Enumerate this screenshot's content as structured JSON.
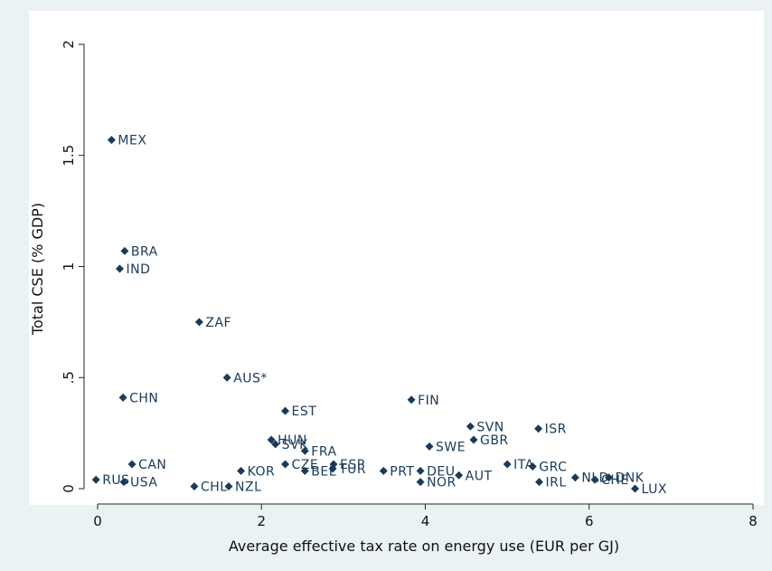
{
  "chart_data": {
    "type": "scatter",
    "title": "",
    "xlabel": "Average effective tax rate on energy use (EUR per GJ)",
    "ylabel": "Total CSE (% GDP)",
    "xlim": [
      0,
      8
    ],
    "ylim": [
      0,
      2
    ],
    "xticks": [
      {
        "v": 0,
        "label": "0"
      },
      {
        "v": 2,
        "label": "2"
      },
      {
        "v": 4,
        "label": "4"
      },
      {
        "v": 6,
        "label": "6"
      },
      {
        "v": 8,
        "label": "8"
      }
    ],
    "yticks": [
      {
        "v": 0,
        "label": "0"
      },
      {
        "v": 0.5,
        "label": ".5"
      },
      {
        "v": 1,
        "label": "1"
      },
      {
        "v": 1.5,
        "label": "1.5"
      },
      {
        "v": 2,
        "label": "2"
      }
    ],
    "grid": false,
    "marker_color": "#1a3a5a",
    "points": [
      {
        "label": "MEX",
        "x": 0.17,
        "y": 1.57
      },
      {
        "label": "BRA",
        "x": 0.33,
        "y": 1.07
      },
      {
        "label": "IND",
        "x": 0.27,
        "y": 0.99
      },
      {
        "label": "ZAF",
        "x": 1.24,
        "y": 0.75
      },
      {
        "label": "AUS*",
        "x": 1.58,
        "y": 0.5
      },
      {
        "label": "CHN",
        "x": 0.31,
        "y": 0.41
      },
      {
        "label": "EST",
        "x": 2.29,
        "y": 0.35
      },
      {
        "label": "FIN",
        "x": 3.83,
        "y": 0.4
      },
      {
        "label": "SVN",
        "x": 4.55,
        "y": 0.28
      },
      {
        "label": "ISR",
        "x": 5.38,
        "y": 0.27
      },
      {
        "label": "GBR",
        "x": 4.59,
        "y": 0.22
      },
      {
        "label": "SWE",
        "x": 4.05,
        "y": 0.19
      },
      {
        "label": "HUN",
        "x": 2.12,
        "y": 0.22
      },
      {
        "label": "SVK",
        "x": 2.17,
        "y": 0.2
      },
      {
        "label": "FRA",
        "x": 2.53,
        "y": 0.17
      },
      {
        "label": "CZE",
        "x": 2.29,
        "y": 0.11
      },
      {
        "label": "ESP",
        "x": 2.88,
        "y": 0.11
      },
      {
        "label": "BEL",
        "x": 2.53,
        "y": 0.08
      },
      {
        "label": "TUR",
        "x": 2.87,
        "y": 0.09
      },
      {
        "label": "PRT",
        "x": 3.49,
        "y": 0.08
      },
      {
        "label": "DEU",
        "x": 3.94,
        "y": 0.08
      },
      {
        "label": "AUT",
        "x": 4.41,
        "y": 0.06
      },
      {
        "label": "NOR",
        "x": 3.94,
        "y": 0.03
      },
      {
        "label": "ITA",
        "x": 5.0,
        "y": 0.11
      },
      {
        "label": "GRC",
        "x": 5.31,
        "y": 0.1
      },
      {
        "label": "IRL",
        "x": 5.39,
        "y": 0.03
      },
      {
        "label": "NLD",
        "x": 5.83,
        "y": 0.05
      },
      {
        "label": "CHE",
        "x": 6.07,
        "y": 0.04
      },
      {
        "label": "DNK",
        "x": 6.24,
        "y": 0.05
      },
      {
        "label": "LUX",
        "x": 6.56,
        "y": 0.0
      },
      {
        "label": "CAN",
        "x": 0.42,
        "y": 0.11
      },
      {
        "label": "KOR",
        "x": 1.75,
        "y": 0.08
      },
      {
        "label": "RUS",
        "x": -0.02,
        "y": 0.04
      },
      {
        "label": "USA",
        "x": 0.32,
        "y": 0.03
      },
      {
        "label": "CHL",
        "x": 1.18,
        "y": 0.01
      },
      {
        "label": "NZL",
        "x": 1.6,
        "y": 0.01
      }
    ]
  }
}
